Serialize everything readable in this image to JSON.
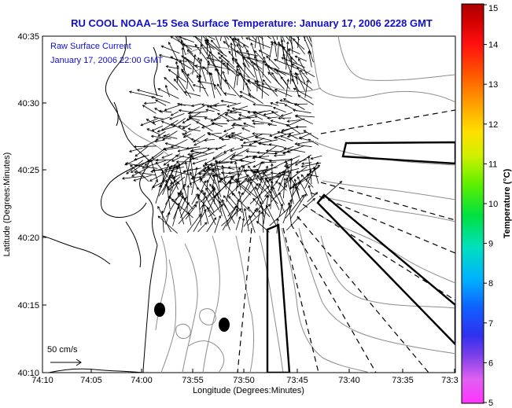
{
  "title": "RU COOL  NOAA–15  Sea Surface Temperature:  January 17, 2006 2228 GMT",
  "annotation": {
    "line1": "Raw Surface Current",
    "line2": "January 17, 2006 22:00 GMT"
  },
  "scale_label": "50 cm/s",
  "x_axis": {
    "title": "Longitude (Degrees:Minutes)",
    "ticks": [
      "74:10",
      "74:05",
      "74:00",
      "73:55",
      "73:50",
      "73:45",
      "73:40",
      "73:35",
      "73:3"
    ]
  },
  "y_axis": {
    "title": "Latitude (Degrees:Minutes)",
    "ticks": [
      "40:35",
      "40:30",
      "40:25",
      "40:20",
      "40:15",
      "40:10"
    ]
  },
  "colorbar": {
    "title": "Temperature (°C)",
    "ticks": [
      "15",
      "14",
      "13",
      "12",
      "11",
      "10",
      "9",
      "8",
      "7",
      "6",
      "5"
    ]
  },
  "colors": {
    "title": "#1010c8",
    "annotation": "#1010c8"
  }
}
